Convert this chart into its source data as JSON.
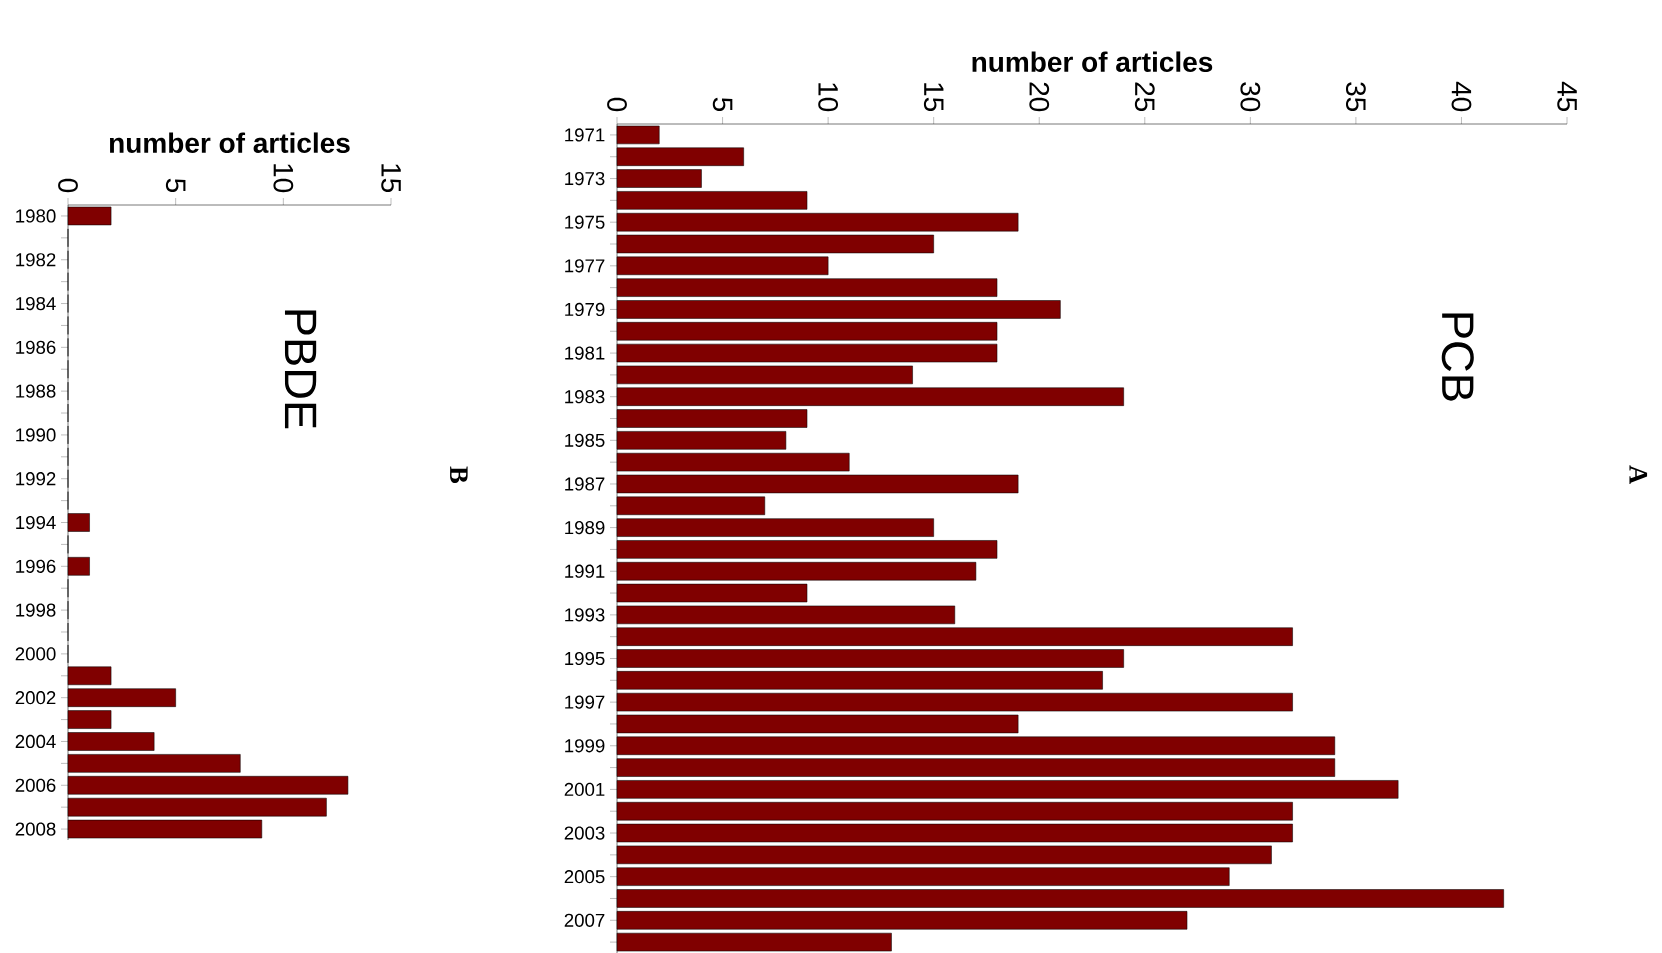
{
  "chart_data": [
    {
      "type": "bar",
      "orientation": "horizontal",
      "title": "PCB",
      "xlabel": "number of articles",
      "annotations": [
        "A"
      ],
      "categories": [
        "1971",
        null,
        "1973",
        null,
        "1975",
        null,
        "1977",
        null,
        "1979",
        null,
        "1981",
        null,
        "1983",
        null,
        "1985",
        null,
        "1987",
        null,
        "1989",
        null,
        "1991",
        null,
        "1993",
        null,
        "1995",
        null,
        "1997",
        null,
        "1999",
        null,
        "2001",
        null,
        "2003",
        null,
        "2005",
        null,
        "2007",
        null
      ],
      "values": [
        2,
        6,
        4,
        9,
        19,
        15,
        10,
        18,
        21,
        18,
        18,
        14,
        24,
        9,
        8,
        11,
        19,
        7,
        15,
        18,
        17,
        9,
        16,
        32,
        24,
        23,
        32,
        19,
        34,
        34,
        37,
        32,
        32,
        31,
        29,
        42,
        27,
        13
      ],
      "color": "#800000",
      "xlim": [
        0,
        45
      ],
      "xticks": [
        0,
        5,
        10,
        15,
        20,
        25,
        30,
        35,
        40,
        45
      ]
    },
    {
      "type": "bar",
      "orientation": "horizontal",
      "title": "PBDE",
      "xlabel": "number of articles",
      "annotations": [
        "B"
      ],
      "categories": [
        "1980",
        null,
        "1982",
        null,
        "1984",
        null,
        "1986",
        null,
        "1988",
        null,
        "1990",
        null,
        "1992",
        null,
        "1994",
        null,
        "1996",
        null,
        "1998",
        null,
        "2000",
        null,
        "2002",
        null,
        "2004",
        null,
        "2006",
        null,
        "2008"
      ],
      "values": [
        2,
        0,
        0,
        0,
        0,
        0,
        0,
        0,
        0,
        0,
        0,
        0,
        0,
        0,
        1,
        0,
        1,
        0,
        0,
        0,
        0,
        2,
        5,
        2,
        4,
        8,
        13,
        12,
        9
      ],
      "color": "#800000",
      "xlim": [
        0,
        15
      ],
      "xticks": [
        0,
        5,
        10,
        15
      ]
    }
  ]
}
